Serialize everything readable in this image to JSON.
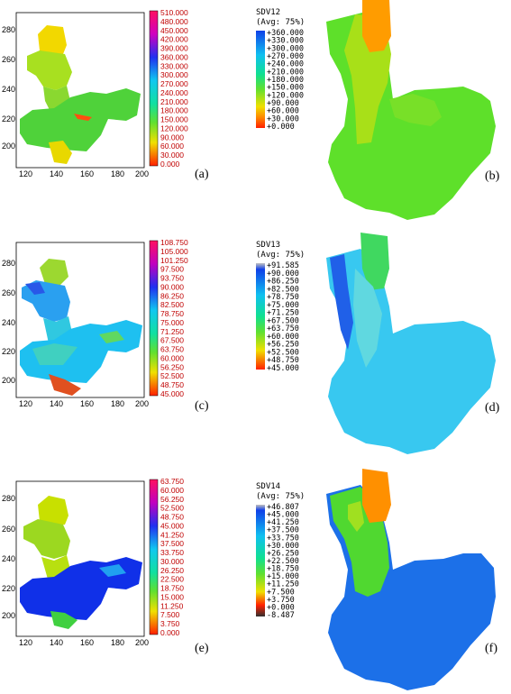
{
  "figure": {
    "panels": [
      {
        "id": "a",
        "letter": "(a)",
        "kind": "grid-map",
        "xticks": [
          "120",
          "140",
          "160",
          "180",
          "200"
        ],
        "yticks": [
          "200",
          "220",
          "240",
          "260",
          "280"
        ],
        "colorbar_labels": [
          "510.000",
          "480.000",
          "450.000",
          "420.000",
          "390.000",
          "360.000",
          "330.000",
          "300.000",
          "270.000",
          "240.000",
          "210.000",
          "180.000",
          "150.000",
          "120.000",
          "90.000",
          "60.000",
          "30.000",
          "0.000"
        ],
        "base_color": "#4fd23a",
        "upper_color": "#f2d800",
        "accent_color": "#c8e800"
      },
      {
        "id": "b",
        "letter": "(b)",
        "kind": "fe-map",
        "title": "SDV12",
        "subtitle": "(Avg: 75%)",
        "colorbar_labels": [
          "+360.000",
          "+330.000",
          "+300.000",
          "+270.000",
          "+240.000",
          "+210.000",
          "+180.000",
          "+150.000",
          "+120.000",
          "+90.000",
          "+60.000",
          "+30.000",
          "+0.000"
        ],
        "base_color": "#5ee02a",
        "top_color": "#ff9c00",
        "mid_color": "#a8e018"
      },
      {
        "id": "c",
        "letter": "(c)",
        "kind": "grid-map",
        "xticks": [
          "120",
          "140",
          "160",
          "180",
          "200"
        ],
        "yticks": [
          "200",
          "220",
          "240",
          "260",
          "280"
        ],
        "colorbar_labels": [
          "108.750",
          "105.000",
          "101.250",
          "97.500",
          "93.750",
          "90.000",
          "86.250",
          "82.500",
          "78.750",
          "75.000",
          "71.250",
          "67.500",
          "63.750",
          "60.000",
          "56.250",
          "52.500",
          "48.750",
          "45.000"
        ],
        "base_color": "#1ec0f0",
        "upper_color": "#9cd830",
        "accent_color": "#2858e8"
      },
      {
        "id": "d",
        "letter": "(d)",
        "kind": "fe-map",
        "title": "SDV13",
        "subtitle": "(Avg: 75%)",
        "colorbar_labels": [
          "+91.585",
          "+90.000",
          "+86.250",
          "+82.500",
          "+78.750",
          "+75.000",
          "+71.250",
          "+67.500",
          "+63.750",
          "+60.000",
          "+56.250",
          "+52.500",
          "+48.750",
          "+45.000"
        ],
        "base_color": "#38c8f0",
        "top_color": "#40d860",
        "mid_color": "#60d8e0"
      },
      {
        "id": "e",
        "letter": "(e)",
        "kind": "grid-map",
        "xticks": [
          "120",
          "140",
          "160",
          "180",
          "200"
        ],
        "yticks": [
          "200",
          "220",
          "240",
          "260",
          "280"
        ],
        "colorbar_labels": [
          "63.750",
          "60.000",
          "56.250",
          "52.500",
          "48.750",
          "45.000",
          "41.250",
          "37.500",
          "33.750",
          "30.000",
          "26.250",
          "22.500",
          "18.750",
          "15.000",
          "11.250",
          "7.500",
          "3.750",
          "0.000"
        ],
        "base_color": "#1030e8",
        "upper_color": "#8ad820",
        "accent_color": "#d8e000"
      },
      {
        "id": "f",
        "letter": "(f)",
        "kind": "fe-map",
        "title": "SDV14",
        "subtitle": "(Avg: 75%)",
        "colorbar_labels": [
          "+46.807",
          "+45.000",
          "+41.250",
          "+37.500",
          "+33.750",
          "+30.000",
          "+26.250",
          "+22.500",
          "+18.750",
          "+15.000",
          "+11.250",
          "+7.500",
          "+3.750",
          "+0.000",
          "-8.487"
        ],
        "base_color": "#1c70e8",
        "top_color": "#ff9000",
        "mid_color": "#50d830"
      }
    ]
  },
  "chart_data": [
    {
      "type": "heatmap",
      "panel": "(a)",
      "x_ticks": [
        120,
        140,
        160,
        180,
        200
      ],
      "y_ticks": [
        200,
        220,
        240,
        260,
        280
      ],
      "colorbar": [
        510,
        480,
        450,
        420,
        390,
        360,
        330,
        300,
        270,
        240,
        210,
        180,
        150,
        120,
        90,
        60,
        30,
        0
      ]
    },
    {
      "type": "heatmap",
      "panel": "(b)",
      "title": "SDV12",
      "subtitle": "(Avg: 75%)",
      "colorbar": [
        360,
        330,
        300,
        270,
        240,
        210,
        180,
        150,
        120,
        90,
        60,
        30,
        0
      ]
    },
    {
      "type": "heatmap",
      "panel": "(c)",
      "x_ticks": [
        120,
        140,
        160,
        180,
        200
      ],
      "y_ticks": [
        200,
        220,
        240,
        260,
        280
      ],
      "colorbar": [
        108.75,
        105,
        101.25,
        97.5,
        93.75,
        90,
        86.25,
        82.5,
        78.75,
        75,
        71.25,
        67.5,
        63.75,
        60,
        56.25,
        52.5,
        48.75,
        45
      ]
    },
    {
      "type": "heatmap",
      "panel": "(d)",
      "title": "SDV13",
      "subtitle": "(Avg: 75%)",
      "colorbar": [
        91.585,
        90,
        86.25,
        82.5,
        78.75,
        75,
        71.25,
        67.5,
        63.75,
        60,
        56.25,
        52.5,
        48.75,
        45
      ]
    },
    {
      "type": "heatmap",
      "panel": "(e)",
      "x_ticks": [
        120,
        140,
        160,
        180,
        200
      ],
      "y_ticks": [
        200,
        220,
        240,
        260,
        280
      ],
      "colorbar": [
        63.75,
        60,
        56.25,
        52.5,
        48.75,
        45,
        41.25,
        37.5,
        33.75,
        30,
        26.25,
        22.5,
        18.75,
        15,
        11.25,
        7.5,
        3.75,
        0
      ]
    },
    {
      "type": "heatmap",
      "panel": "(f)",
      "title": "SDV14",
      "subtitle": "(Avg: 75%)",
      "colorbar": [
        46.807,
        45,
        41.25,
        37.5,
        33.75,
        30,
        26.25,
        22.5,
        18.75,
        15,
        11.25,
        7.5,
        3.75,
        0,
        -8.487
      ]
    }
  ]
}
